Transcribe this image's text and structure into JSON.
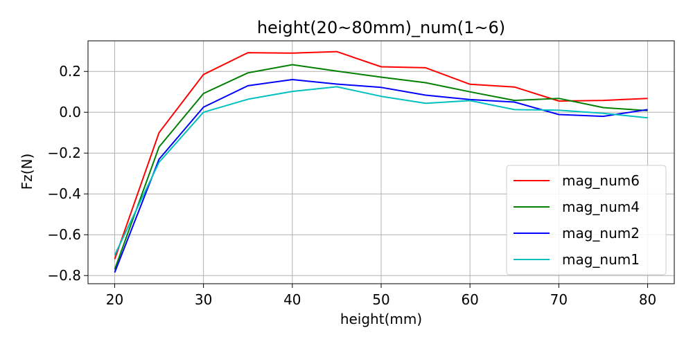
{
  "chart_data": {
    "type": "line",
    "title": "height(20~80mm)_num(1~6)",
    "xlabel": "height(mm)",
    "ylabel": "Fz(N)",
    "xlim": [
      17,
      83
    ],
    "ylim": [
      -0.84,
      0.35
    ],
    "xticks": [
      20,
      30,
      40,
      50,
      60,
      70,
      80
    ],
    "xtick_labels": [
      "20",
      "30",
      "40",
      "50",
      "60",
      "70",
      "80"
    ],
    "yticks": [
      -0.8,
      -0.6,
      -0.4,
      -0.2,
      0.0,
      0.2
    ],
    "ytick_labels": [
      "−0.8",
      "−0.6",
      "−0.4",
      "−0.2",
      "0.0",
      "0.2"
    ],
    "grid": true,
    "legend_position": "lower-right",
    "x": [
      20,
      25,
      30,
      35,
      40,
      45,
      50,
      55,
      60,
      65,
      70,
      75,
      80
    ],
    "series": [
      {
        "name": "mag_num6",
        "color": "#ff0000",
        "values": [
          -0.72,
          -0.1,
          0.185,
          0.292,
          0.29,
          0.297,
          0.223,
          0.218,
          0.137,
          0.124,
          0.055,
          0.058,
          0.068
        ]
      },
      {
        "name": "mag_num4",
        "color": "#008000",
        "values": [
          -0.77,
          -0.17,
          0.092,
          0.193,
          0.233,
          0.202,
          0.172,
          0.145,
          0.1,
          0.058,
          0.068,
          0.023,
          0.008
        ]
      },
      {
        "name": "mag_num2",
        "color": "#0000ff",
        "values": [
          -0.785,
          -0.23,
          0.025,
          0.13,
          0.16,
          0.138,
          0.122,
          0.084,
          0.062,
          0.05,
          -0.011,
          -0.02,
          0.013
        ]
      },
      {
        "name": "mag_num1",
        "color": "#00bfbf",
        "values": [
          -0.7,
          -0.245,
          0.0,
          0.064,
          0.102,
          0.125,
          0.078,
          0.044,
          0.057,
          0.013,
          0.01,
          -0.005,
          -0.027
        ]
      }
    ]
  }
}
